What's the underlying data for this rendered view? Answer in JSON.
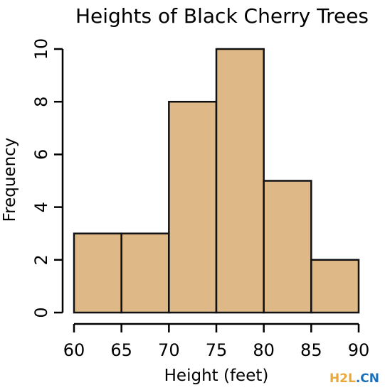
{
  "chart_data": {
    "type": "bar",
    "title": "Heights of Black Cherry Trees",
    "xlabel": "Height (feet)",
    "ylabel": "Frequency",
    "bins": [
      {
        "from": 60,
        "to": 65,
        "count": 3
      },
      {
        "from": 65,
        "to": 70,
        "count": 3
      },
      {
        "from": 70,
        "to": 75,
        "count": 8
      },
      {
        "from": 75,
        "to": 80,
        "count": 10
      },
      {
        "from": 80,
        "to": 85,
        "count": 5
      },
      {
        "from": 85,
        "to": 90,
        "count": 2
      }
    ],
    "xlim": [
      60,
      90
    ],
    "ylim": [
      0,
      10
    ],
    "x_ticks": [
      "60",
      "65",
      "70",
      "75",
      "80",
      "85",
      "90"
    ],
    "y_ticks": [
      "0",
      "2",
      "4",
      "6",
      "8",
      "10"
    ],
    "bar_color": "#deb887",
    "grid": false
  },
  "watermark": {
    "main": "H2L",
    "suffix": ".CN"
  }
}
